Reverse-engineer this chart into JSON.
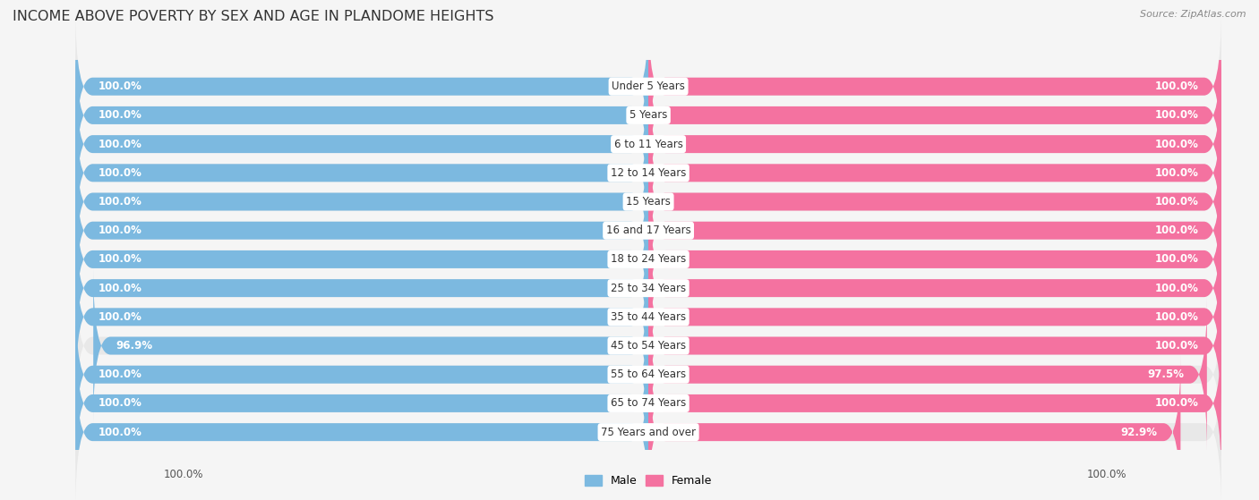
{
  "title": "INCOME ABOVE POVERTY BY SEX AND AGE IN PLANDOME HEIGHTS",
  "source": "Source: ZipAtlas.com",
  "categories": [
    "Under 5 Years",
    "5 Years",
    "6 to 11 Years",
    "12 to 14 Years",
    "15 Years",
    "16 and 17 Years",
    "18 to 24 Years",
    "25 to 34 Years",
    "35 to 44 Years",
    "45 to 54 Years",
    "55 to 64 Years",
    "65 to 74 Years",
    "75 Years and over"
  ],
  "male": [
    100.0,
    100.0,
    100.0,
    100.0,
    100.0,
    100.0,
    100.0,
    100.0,
    100.0,
    96.9,
    100.0,
    100.0,
    100.0
  ],
  "female": [
    100.0,
    100.0,
    100.0,
    100.0,
    100.0,
    100.0,
    100.0,
    100.0,
    100.0,
    100.0,
    97.5,
    100.0,
    92.9
  ],
  "male_color": "#7cb9e0",
  "female_color": "#f472a0",
  "male_light_color": "#d6eaf8",
  "female_light_color": "#fadadd",
  "background_color": "#f5f5f5",
  "row_bg_color": "#e8e8e8",
  "title_fontsize": 11.5,
  "label_fontsize": 8.5,
  "value_fontsize": 8.5,
  "axis_max": 100.0,
  "legend_male": "Male",
  "legend_female": "Female"
}
